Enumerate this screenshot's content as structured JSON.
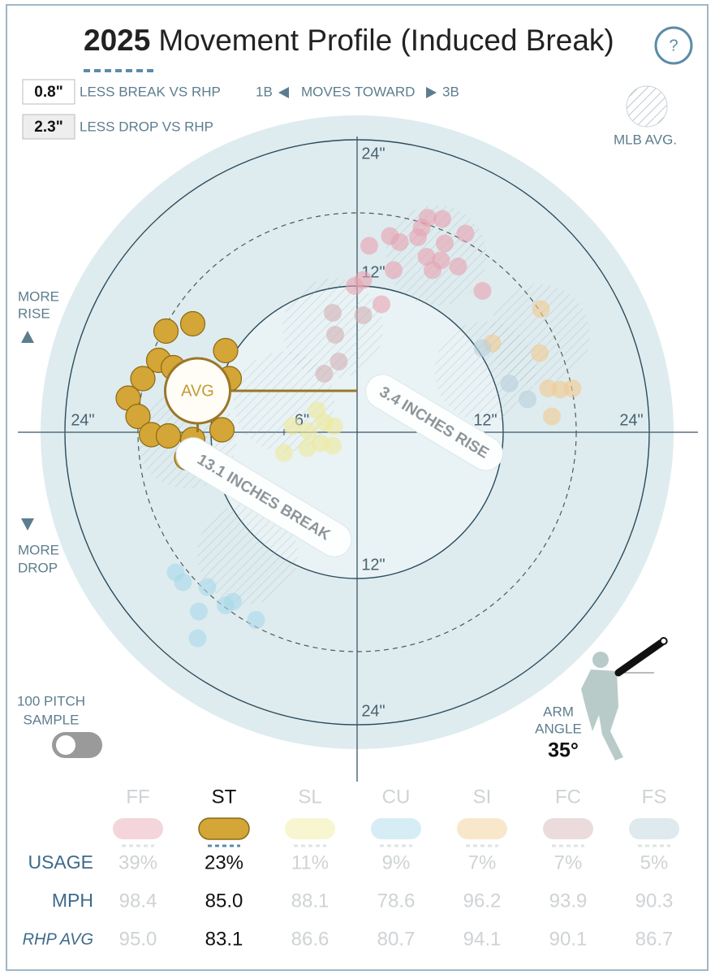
{
  "header": {
    "title_year": "2025",
    "title": "Movement Profile (Induced Break)",
    "help": "?",
    "key": [
      {
        "value": "0.8\"",
        "label": "LESS BREAK VS RHP"
      },
      {
        "value": "2.3\"",
        "label": "LESS DROP VS RHP"
      }
    ],
    "direction": {
      "left": "1B",
      "middle": "MOVES TOWARD",
      "right": "3B"
    },
    "mlb_avg_label": "MLB AVG.",
    "more_rise": [
      "MORE",
      "RISE"
    ],
    "more_drop": [
      "MORE",
      "DROP"
    ],
    "sample": [
      "100 PITCH",
      "SAMPLE"
    ],
    "arm_angle_title": [
      "ARM",
      "ANGLE"
    ],
    "arm_angle": 35,
    "arm_angle_label": "35°"
  },
  "chart_data": {
    "type": "scatter",
    "selected": "ST",
    "xlim": [
      -24,
      24
    ],
    "ylim": [
      -24,
      24
    ],
    "xticks": [
      {
        "value": -24,
        "label": "24\""
      },
      {
        "value": -6,
        "label": "6\""
      },
      {
        "value": 12,
        "label": "12\""
      },
      {
        "value": 24,
        "label": "24\""
      }
    ],
    "yticks": [
      {
        "value": 24,
        "label": "24\""
      },
      {
        "value": 12,
        "label": "12\""
      },
      {
        "value": -12,
        "label": "12\""
      },
      {
        "value": -24,
        "label": "24\""
      }
    ],
    "rings": [
      6,
      12,
      18,
      24
    ],
    "avg_label": "AVG",
    "annotations": [
      "3.4 INCHES RISE",
      "13.1 INCHES BREAK"
    ],
    "series": [
      {
        "name": "FF",
        "color": "#e7a1b0",
        "mlb_avg": [
          6.5,
          14.5
        ],
        "x": [
          1.0,
          2.7,
          3.5,
          5.0,
          5.8,
          7.0,
          8.9,
          7.2,
          5.7,
          6.9,
          8.3,
          6.2,
          3.0,
          0.5,
          -0.2,
          2.0,
          10.3,
          5.3
        ],
        "y": [
          15.3,
          16.1,
          15.6,
          16.0,
          17.6,
          17.5,
          16.3,
          15.5,
          14.4,
          14.1,
          13.6,
          13.3,
          13.3,
          12.5,
          12.0,
          10.5,
          11.6,
          16.8
        ]
      },
      {
        "name": "ST",
        "color": "#d4a537",
        "mlb_avg": [
          -14.0,
          -0.5
        ],
        "avg": {
          "x": -13.1,
          "y": 3.4
        },
        "x": [
          -15.7,
          -13.5,
          -10.8,
          -16.3,
          -17.6,
          -18.8,
          -18.0,
          -16.9,
          -15.5,
          -13.5,
          -11.1,
          -10.5,
          -14.0,
          -15.1
        ],
        "y": [
          8.3,
          8.9,
          6.7,
          5.9,
          4.4,
          2.8,
          1.3,
          -0.2,
          -0.3,
          -0.6,
          0.2,
          4.4,
          -2.1,
          5.3
        ]
      },
      {
        "name": "SL",
        "color": "#efe99a",
        "mlb_avg": [
          -6.0,
          2.5
        ],
        "x": [
          -3.3,
          -1.9,
          -4.0,
          -3.0,
          -2.0,
          -6.0,
          -4.1,
          -5.3,
          -2.7
        ],
        "y": [
          1.8,
          0.5,
          0.1,
          -0.9,
          -1.1,
          -1.7,
          -1.3,
          0.5,
          0.8
        ]
      },
      {
        "name": "CU",
        "color": "#a6d8ea",
        "mlb_avg": [
          -9.0,
          -10.0
        ],
        "x": [
          -14.9,
          -14.3,
          -12.3,
          -13.0,
          -10.8,
          -10.2,
          -8.3,
          -13.1
        ],
        "y": [
          -11.5,
          -12.3,
          -12.7,
          -14.7,
          -14.2,
          -13.9,
          -15.4,
          -16.9
        ]
      },
      {
        "name": "SI",
        "color": "#f1c98f",
        "mlb_avg": [
          15.0,
          8.0
        ],
        "x": [
          15.1,
          11.1,
          15.0,
          15.7,
          16.7,
          17.7,
          16.0
        ],
        "y": [
          10.1,
          7.3,
          6.5,
          3.6,
          3.5,
          3.6,
          1.3
        ]
      },
      {
        "name": "FC",
        "color": "#d3b0b4",
        "mlb_avg": [
          -2.0,
          8.5
        ],
        "x": [
          -2.0,
          -1.8,
          0.5,
          -1.5,
          -2.7
        ],
        "y": [
          9.8,
          8.0,
          9.6,
          5.8,
          4.8
        ]
      },
      {
        "name": "FS",
        "color": "#b9d1dc",
        "mlb_avg": [
          10.5,
          5.0
        ],
        "x": [
          10.3,
          12.5,
          14.0
        ],
        "y": [
          6.9,
          4.0,
          2.7
        ]
      }
    ]
  },
  "table": {
    "row_labels": [
      "USAGE",
      "MPH",
      "RHP AVG"
    ],
    "rows": [
      [
        "39%",
        "23%",
        "11%",
        "9%",
        "7%",
        "7%",
        "5%"
      ],
      [
        "98.4",
        "85.0",
        "88.1",
        "78.6",
        "96.2",
        "93.9",
        "90.3"
      ],
      [
        "95.0",
        "83.1",
        "86.6",
        "80.7",
        "94.1",
        "90.1",
        "86.7"
      ]
    ]
  }
}
